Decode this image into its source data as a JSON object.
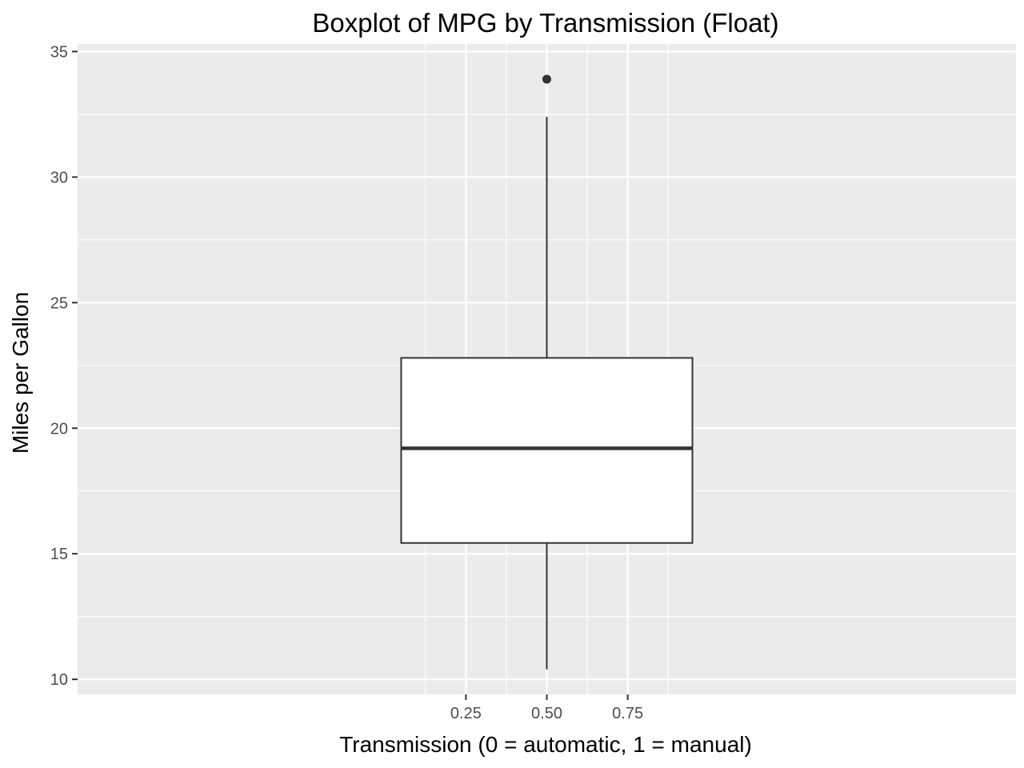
{
  "chart_data": {
    "type": "boxplot",
    "title": "Boxplot of MPG by Transmission (Float)",
    "xlabel": "Transmission (0 = automatic, 1 = manual)",
    "ylabel": "Miles per Gallon",
    "xlim": [
      -0.95,
      1.95
    ],
    "ylim": [
      9.4,
      35.3
    ],
    "xticks": [
      {
        "value": 0.25,
        "label": "0.25"
      },
      {
        "value": 0.5,
        "label": "0.50"
      },
      {
        "value": 0.75,
        "label": "0.75"
      }
    ],
    "yticks": [
      {
        "value": 10,
        "label": "10"
      },
      {
        "value": 15,
        "label": "15"
      },
      {
        "value": 20,
        "label": "20"
      },
      {
        "value": 25,
        "label": "25"
      },
      {
        "value": 30,
        "label": "30"
      },
      {
        "value": 35,
        "label": "35"
      }
    ],
    "box": {
      "x": 0.5,
      "x_range": [
        0.05,
        0.95
      ],
      "whisker_low": 10.4,
      "q1": 15.43,
      "median": 19.2,
      "q3": 22.8,
      "whisker_high": 32.4,
      "outliers": [
        33.9
      ]
    },
    "grid": true,
    "legend": "none",
    "colors": {
      "panel_background": "#ebebeb",
      "grid": "#ffffff",
      "box_fill": "#ffffff",
      "box_line": "#333333",
      "tick_text": "#4d4d4d"
    }
  }
}
